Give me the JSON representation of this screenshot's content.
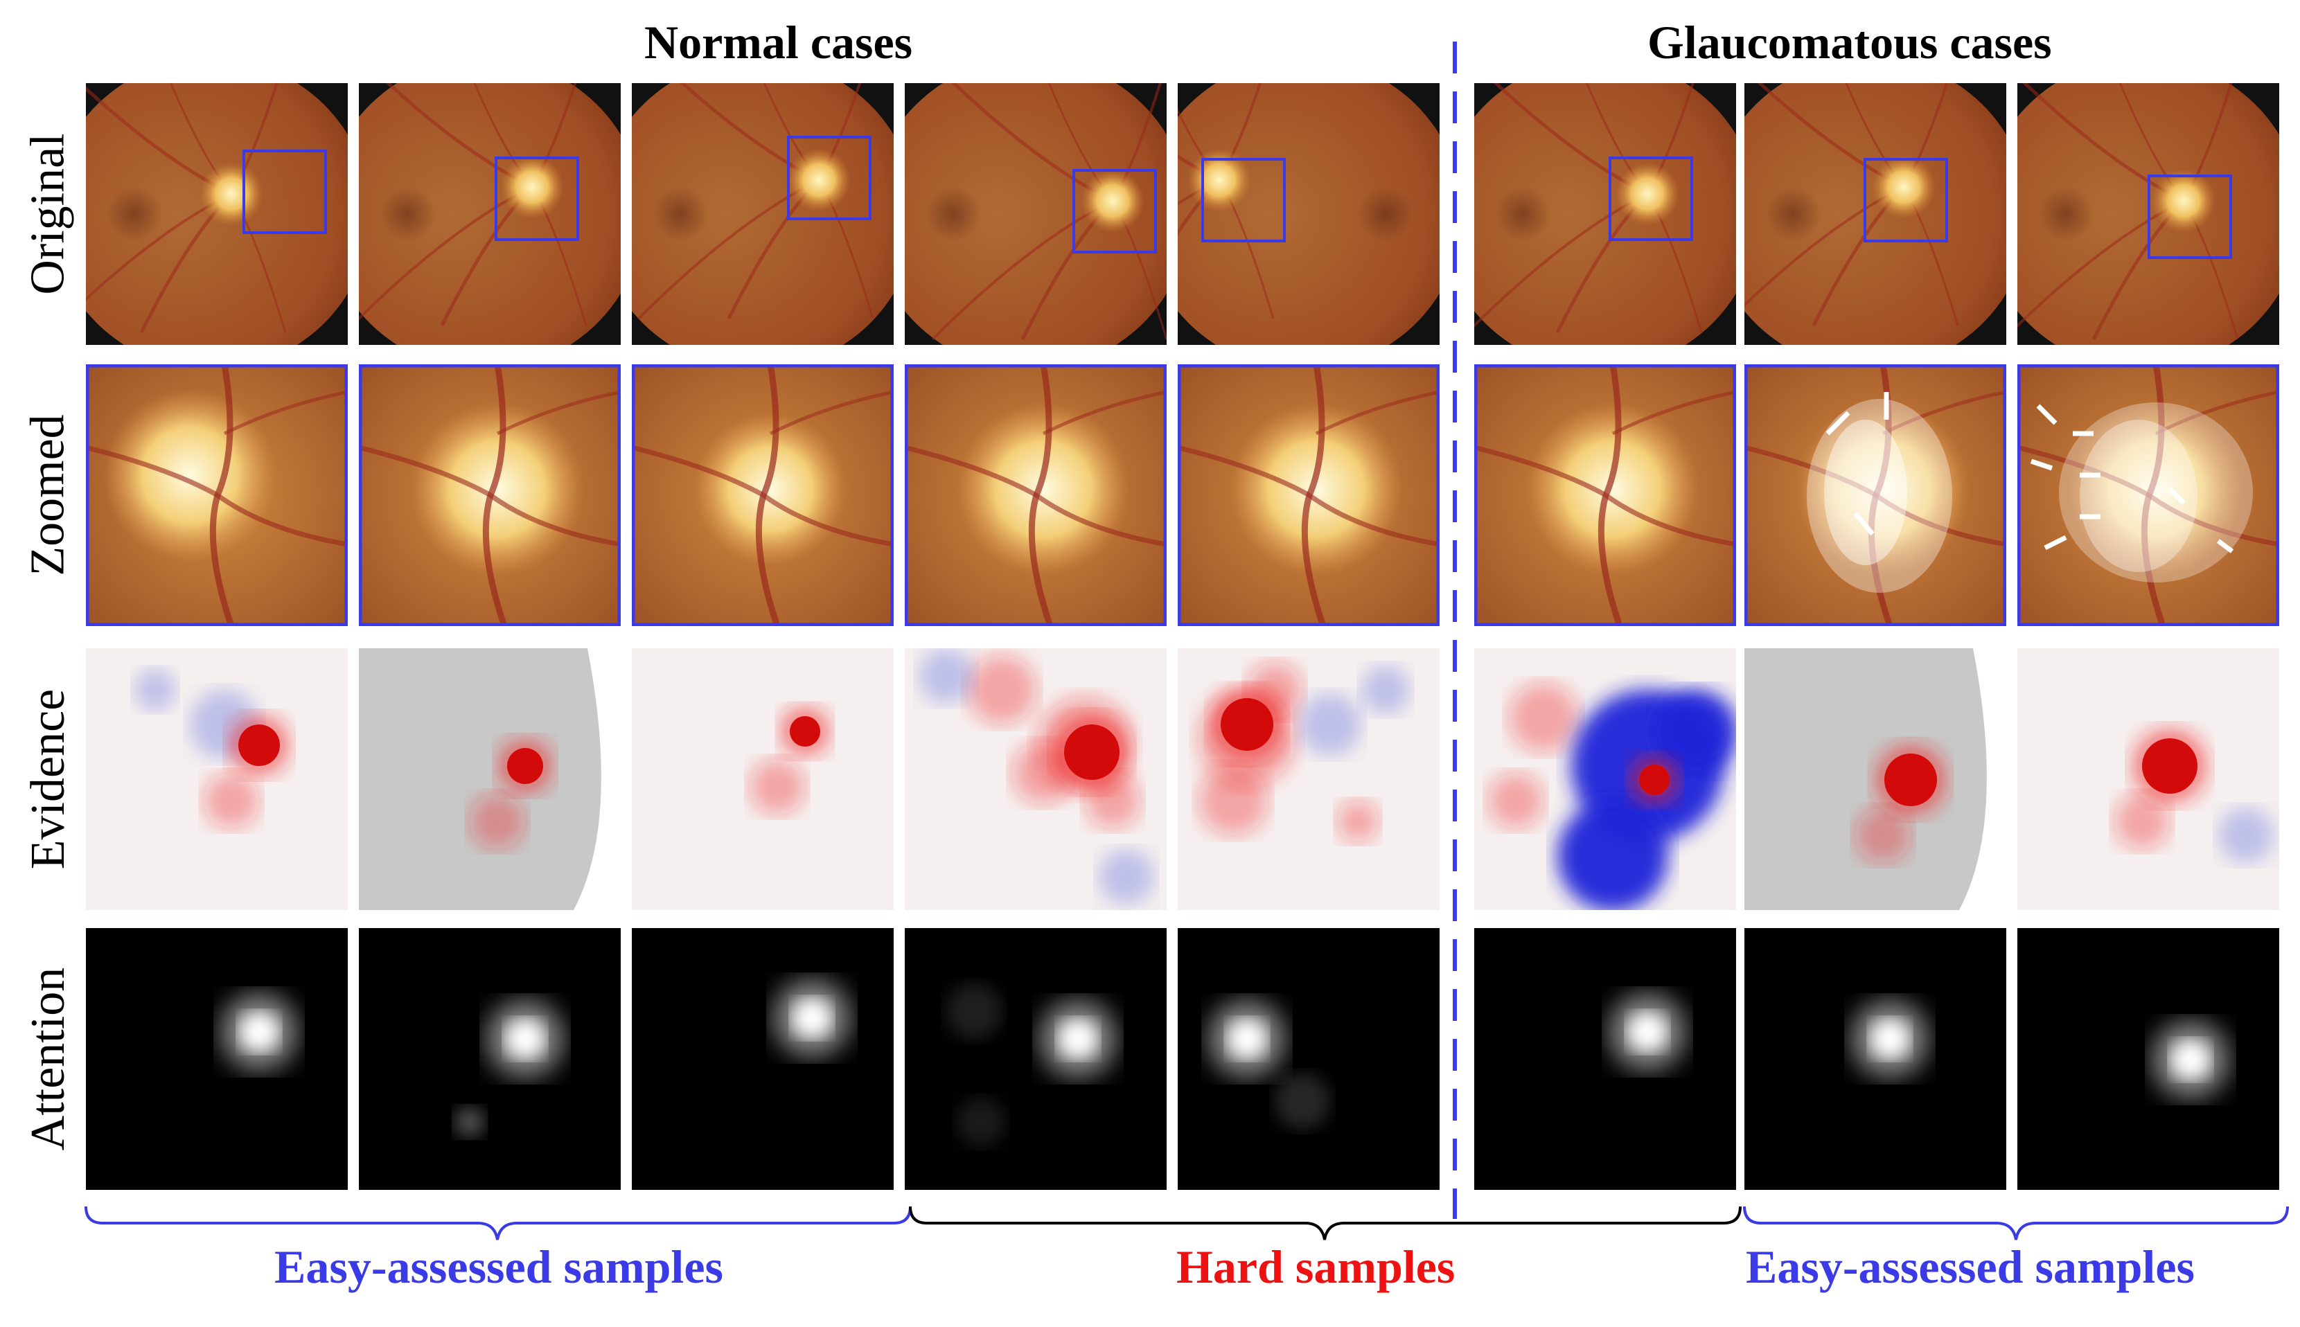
{
  "titles": {
    "normal": "Normal cases",
    "glaucoma": "Glaucomatous cases"
  },
  "row_labels": [
    "Original",
    "Zoomed",
    "Evidence",
    "Attention"
  ],
  "group_labels": {
    "easy_left": "Easy-assessed samples",
    "hard": "Hard samples",
    "easy_right": "Easy-assessed samples"
  },
  "colors": {
    "box": "#3a3ae6",
    "hard_label": "#ee1111",
    "easy_label": "#3a3ae6",
    "divider": "#3a3ae6"
  }
}
